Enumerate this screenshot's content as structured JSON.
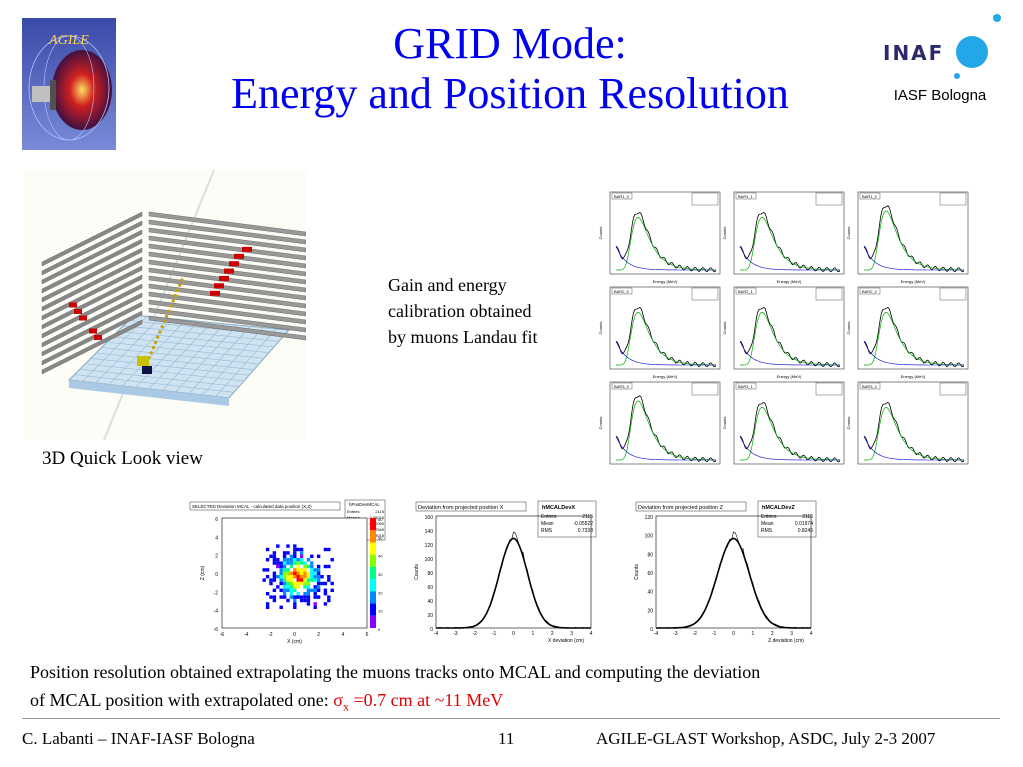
{
  "title_line1": "GRID Mode:",
  "title_line2": "Energy and Position Resolution",
  "agile_logo_text": "AGILE",
  "inaf_logo_text": "INAF",
  "iasf_label": "IASF Bologna",
  "quicklook_caption": "3D Quick Look view",
  "gain_text": [
    "Gain and energy",
    "calibration obtained",
    "by muons Landau fit"
  ],
  "histograms_grid": {
    "panel_titles": [
      "BAR1_0",
      "BAR1_1",
      "BAR1_2",
      "BAR2_0",
      "BAR2_1",
      "BAR2_2",
      "BAR3_0",
      "BAR3_1",
      "BAR3_2"
    ],
    "xlabel": "Energy (MeV)",
    "ylabel": "Counts"
  },
  "bottom_plots": {
    "map": {
      "title": "SELECTED Deviation MCAL - calculated data position (X,Z)",
      "stat_title": "hPosDevMCAL",
      "stats": [
        [
          "Entries",
          "2115"
        ],
        [
          "Mean x",
          "-0.06016"
        ],
        [
          "Mean y",
          "0.02050"
        ],
        [
          "RMS x",
          "0.7549"
        ],
        [
          "RMS y",
          "0.8015"
        ]
      ],
      "xlabel": "X (cm)",
      "ylabel": "Z (cm)",
      "xticks": [
        "-6",
        "-4",
        "-2",
        "0",
        "2",
        "4",
        "6"
      ],
      "yticks": [
        "6",
        "4",
        "2",
        "0",
        "-2",
        "-4",
        "-6"
      ],
      "zticks": [
        "60",
        "50",
        "40",
        "30",
        "20",
        "10",
        "0"
      ]
    },
    "devx": {
      "title": "Deviation from projected position X",
      "stat_title": "hMCALDevX",
      "stats": [
        [
          "Entries",
          "2115"
        ],
        [
          "Mean",
          "-0.05522"
        ],
        [
          "RMS",
          "0.7338"
        ]
      ],
      "xlabel": "X deviation (cm)",
      "ylabel": "Counts",
      "yticks": [
        "160",
        "140",
        "120",
        "100",
        "80",
        "60",
        "40",
        "20",
        "0"
      ],
      "xticks": [
        "-4",
        "-3",
        "-2",
        "-1",
        "0",
        "1",
        "2",
        "3",
        "4"
      ]
    },
    "devz": {
      "title": "Deviation from projected position Z",
      "stat_title": "hMCALDevZ",
      "stats": [
        [
          "Entries",
          "2115"
        ],
        [
          "Mean",
          "0.01974"
        ],
        [
          "RMS",
          "0.8245"
        ]
      ],
      "xlabel": "Z deviation (cm)",
      "ylabel": "Counts",
      "yticks": [
        "120",
        "100",
        "80",
        "60",
        "40",
        "20",
        "0"
      ],
      "xticks": [
        "-4",
        "-3",
        "-2",
        "-1",
        "0",
        "1",
        "2",
        "3",
        "4"
      ]
    }
  },
  "desc_line1": "Position resolution obtained extrapolating the muons tracks onto MCAL and computing the deviation",
  "desc_line2_prefix": "of MCAL position with extrapolated one: ",
  "desc_sigma": "σ",
  "desc_sub": "x",
  "desc_value": " =0.7 cm at ~11 MeV",
  "footer_left": "C. Labanti – INAF-IASF Bologna",
  "footer_page": "11",
  "footer_right": "AGILE-GLAST Workshop, ASDC, July 2-3 2007"
}
